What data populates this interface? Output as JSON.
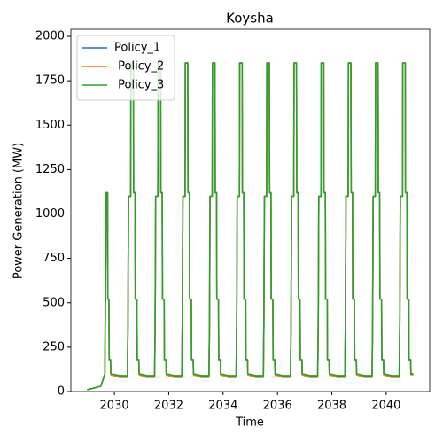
{
  "chart_data": {
    "type": "line",
    "title": "Koysha",
    "x_label": "Time",
    "y_label": "Power Generation (MW)",
    "x": [
      2029.0,
      2029.5,
      2029.65,
      2029.7,
      2029.75,
      2029.76,
      2029.8,
      2029.81,
      2029.86,
      2029.87,
      2030.2,
      2030.48,
      2030.5,
      2030.52,
      2030.6,
      2030.61,
      2030.7,
      2030.71,
      2030.76,
      2030.77,
      2030.83,
      2030.84,
      2030.9,
      2030.91,
      2031.2,
      2031.48,
      2031.5,
      2031.52,
      2031.6,
      2031.61,
      2031.7,
      2031.71,
      2031.76,
      2031.77,
      2031.83,
      2031.84,
      2031.9,
      2031.91,
      2032.2,
      2032.48,
      2032.5,
      2032.52,
      2032.6,
      2032.61,
      2032.7,
      2032.71,
      2032.76,
      2032.77,
      2032.83,
      2032.84,
      2032.9,
      2032.91,
      2033.2,
      2033.48,
      2033.5,
      2033.52,
      2033.6,
      2033.61,
      2033.7,
      2033.71,
      2033.76,
      2033.77,
      2033.83,
      2033.84,
      2033.9,
      2033.91,
      2034.2,
      2034.48,
      2034.5,
      2034.52,
      2034.6,
      2034.61,
      2034.7,
      2034.71,
      2034.76,
      2034.77,
      2034.83,
      2034.84,
      2034.9,
      2034.91,
      2035.2,
      2035.48,
      2035.5,
      2035.52,
      2035.6,
      2035.61,
      2035.7,
      2035.71,
      2035.76,
      2035.77,
      2035.83,
      2035.84,
      2035.9,
      2035.91,
      2036.2,
      2036.48,
      2036.5,
      2036.52,
      2036.6,
      2036.61,
      2036.7,
      2036.71,
      2036.76,
      2036.77,
      2036.83,
      2036.84,
      2036.9,
      2036.91,
      2037.2,
      2037.48,
      2037.5,
      2037.52,
      2037.6,
      2037.61,
      2037.7,
      2037.71,
      2037.76,
      2037.77,
      2037.83,
      2037.84,
      2037.9,
      2037.91,
      2038.2,
      2038.48,
      2038.5,
      2038.52,
      2038.6,
      2038.61,
      2038.7,
      2038.71,
      2038.76,
      2038.77,
      2038.83,
      2038.84,
      2038.9,
      2038.91,
      2039.2,
      2039.48,
      2039.5,
      2039.52,
      2039.6,
      2039.61,
      2039.7,
      2039.71,
      2039.76,
      2039.77,
      2039.83,
      2039.84,
      2039.9,
      2039.91,
      2040.2,
      2040.48,
      2040.5,
      2040.52,
      2040.6,
      2040.61,
      2040.7,
      2040.71,
      2040.76,
      2040.77,
      2040.83,
      2040.84,
      2040.9,
      2040.91,
      2041.0
    ],
    "series": [
      {
        "name": "Policy_1",
        "color": "#1f77b4",
        "values": [
          10,
          30,
          100,
          1120,
          1120,
          520,
          520,
          180,
          180,
          100,
          88,
          88,
          380,
          1100,
          1100,
          1850,
          1850,
          1120,
          1120,
          520,
          520,
          180,
          180,
          100,
          88,
          88,
          380,
          1100,
          1100,
          1850,
          1850,
          1120,
          1120,
          520,
          520,
          180,
          180,
          100,
          88,
          88,
          380,
          1100,
          1100,
          1850,
          1850,
          1120,
          1120,
          520,
          520,
          180,
          180,
          100,
          88,
          88,
          380,
          1100,
          1100,
          1850,
          1850,
          1120,
          1120,
          520,
          520,
          180,
          180,
          100,
          88,
          88,
          380,
          1100,
          1100,
          1850,
          1850,
          1120,
          1120,
          520,
          520,
          180,
          180,
          100,
          88,
          88,
          380,
          1100,
          1100,
          1850,
          1850,
          1120,
          1120,
          520,
          520,
          180,
          180,
          100,
          88,
          88,
          380,
          1100,
          1100,
          1850,
          1850,
          1120,
          1120,
          520,
          520,
          180,
          180,
          100,
          88,
          88,
          380,
          1100,
          1100,
          1850,
          1850,
          1120,
          1120,
          520,
          520,
          180,
          180,
          100,
          88,
          88,
          380,
          1100,
          1100,
          1850,
          1850,
          1120,
          1120,
          520,
          520,
          180,
          180,
          100,
          88,
          88,
          380,
          1100,
          1100,
          1850,
          1850,
          1120,
          1120,
          520,
          520,
          180,
          180,
          100,
          88,
          88,
          380,
          1100,
          1100,
          1850,
          1850,
          1120,
          1120,
          520,
          520,
          180,
          180,
          100,
          100
        ]
      },
      {
        "name": " Policy_2",
        "color": "#ff7f0e",
        "values": [
          10,
          30,
          95,
          1120,
          1120,
          520,
          520,
          180,
          180,
          95,
          80,
          80,
          380,
          1100,
          1100,
          1850,
          1850,
          1120,
          1120,
          520,
          520,
          180,
          180,
          95,
          80,
          80,
          380,
          1100,
          1100,
          1850,
          1850,
          1120,
          1120,
          520,
          520,
          180,
          180,
          95,
          80,
          80,
          380,
          1100,
          1100,
          1850,
          1850,
          1120,
          1120,
          520,
          520,
          180,
          180,
          95,
          80,
          80,
          380,
          1100,
          1100,
          1850,
          1850,
          1120,
          1120,
          520,
          520,
          180,
          180,
          95,
          80,
          80,
          380,
          1100,
          1100,
          1850,
          1850,
          1120,
          1120,
          520,
          520,
          180,
          180,
          95,
          80,
          80,
          380,
          1100,
          1100,
          1850,
          1850,
          1120,
          1120,
          520,
          520,
          180,
          180,
          95,
          80,
          80,
          380,
          1100,
          1100,
          1850,
          1850,
          1120,
          1120,
          520,
          520,
          180,
          180,
          95,
          80,
          80,
          380,
          1100,
          1100,
          1850,
          1850,
          1120,
          1120,
          520,
          520,
          180,
          180,
          95,
          80,
          80,
          380,
          1100,
          1100,
          1850,
          1850,
          1120,
          1120,
          520,
          520,
          180,
          180,
          95,
          80,
          80,
          380,
          1100,
          1100,
          1850,
          1850,
          1120,
          1120,
          520,
          520,
          180,
          180,
          95,
          80,
          80,
          380,
          1100,
          1100,
          1850,
          1850,
          1120,
          1120,
          520,
          520,
          180,
          180,
          95,
          95
        ]
      },
      {
        "name": " Policy_3",
        "color": "#2ca02c",
        "values": [
          10,
          30,
          100,
          1120,
          1120,
          520,
          520,
          180,
          180,
          100,
          90,
          90,
          380,
          1100,
          1100,
          1850,
          1850,
          1120,
          1120,
          520,
          520,
          180,
          180,
          100,
          90,
          90,
          380,
          1100,
          1100,
          1850,
          1850,
          1120,
          1120,
          520,
          520,
          180,
          180,
          100,
          90,
          90,
          380,
          1100,
          1100,
          1850,
          1850,
          1120,
          1120,
          520,
          520,
          180,
          180,
          100,
          90,
          90,
          380,
          1100,
          1100,
          1850,
          1850,
          1120,
          1120,
          520,
          520,
          180,
          180,
          100,
          90,
          90,
          380,
          1100,
          1100,
          1850,
          1850,
          1120,
          1120,
          520,
          520,
          180,
          180,
          100,
          90,
          90,
          380,
          1100,
          1100,
          1850,
          1850,
          1120,
          1120,
          520,
          520,
          180,
          180,
          100,
          90,
          90,
          380,
          1100,
          1100,
          1850,
          1850,
          1120,
          1120,
          520,
          520,
          180,
          180,
          100,
          90,
          90,
          380,
          1100,
          1100,
          1850,
          1850,
          1120,
          1120,
          520,
          520,
          180,
          180,
          100,
          90,
          90,
          380,
          1100,
          1100,
          1850,
          1850,
          1120,
          1120,
          520,
          520,
          180,
          180,
          100,
          90,
          90,
          380,
          1100,
          1100,
          1850,
          1850,
          1120,
          1120,
          520,
          520,
          180,
          180,
          100,
          90,
          90,
          380,
          1100,
          1100,
          1850,
          1850,
          1120,
          1120,
          520,
          520,
          180,
          180,
          100,
          100
        ]
      }
    ],
    "xlim": [
      2028.4,
      2041.6
    ],
    "xticks": [
      2030,
      2032,
      2034,
      2036,
      2038,
      2040
    ],
    "ylim": [
      0,
      2040
    ],
    "yticks": [
      0,
      250,
      500,
      750,
      1000,
      1250,
      1500,
      1750,
      2000
    ],
    "legend": "upper left"
  }
}
